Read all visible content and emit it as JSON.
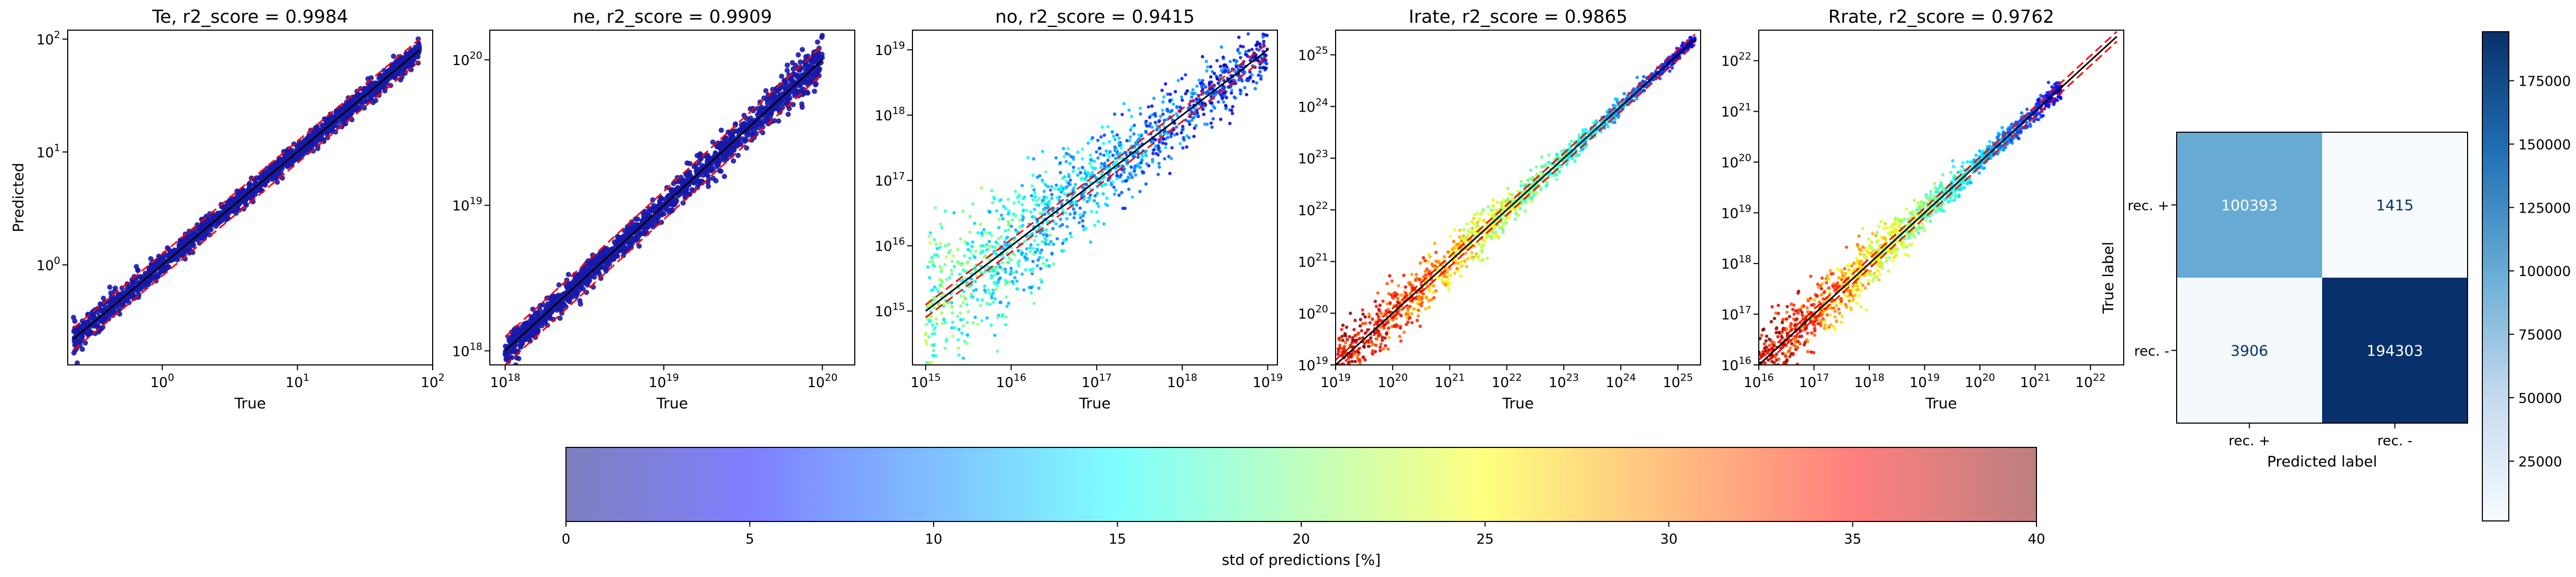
{
  "chart_data": [
    {
      "type": "scatter",
      "title": "Te, r2_score = 0.9984",
      "xlabel": "True",
      "ylabel": "Predicted",
      "xscale": "log",
      "yscale": "log",
      "xlim": [
        0.2,
        100
      ],
      "ylim": [
        0.13,
        120
      ],
      "xticks": [
        {
          "value": 1,
          "label": "10^0"
        },
        {
          "value": 10,
          "label": "10^1"
        },
        {
          "value": 100,
          "label": "10^2"
        }
      ],
      "yticks": [
        {
          "value": 1,
          "label": "10^0"
        },
        {
          "value": 10,
          "label": "10^1"
        },
        {
          "value": 100,
          "label": "10^2"
        }
      ],
      "point_color": "#1818a8",
      "identity_line": {
        "color": "#000000",
        "range": [
          0.22,
          80
        ]
      },
      "bounds": {
        "color": "#ff0000",
        "style": "dashed",
        "factors": [
          1.25,
          0.8
        ]
      },
      "series_shape": [
        {
          "x": 0.22,
          "y": 0.22,
          "spread": 0.07
        },
        {
          "x": 1,
          "y": 1,
          "spread": 0.05
        },
        {
          "x": 10,
          "y": 10,
          "spread": 0.04
        },
        {
          "x": 80,
          "y": 80,
          "spread": 0.05
        }
      ]
    },
    {
      "type": "scatter",
      "title": "ne, r2_score = 0.9909",
      "xlabel": "True",
      "ylabel": "",
      "xscale": "log",
      "yscale": "log",
      "xlim": [
        8e+17,
        1.6e+20
      ],
      "ylim": [
        8e+17,
        1.6e+20
      ],
      "xticks": [
        {
          "value": 1e+18,
          "label": "10^18"
        },
        {
          "value": 1e+19,
          "label": "10^19"
        },
        {
          "value": 1e+20,
          "label": "10^20"
        }
      ],
      "yticks": [
        {
          "value": 1e+18,
          "label": "10^18"
        },
        {
          "value": 1e+19,
          "label": "10^19"
        },
        {
          "value": 1e+20,
          "label": "10^20"
        }
      ],
      "point_color": "#1818a8",
      "identity_line": {
        "color": "#000000",
        "range": [
          1e+18,
          1e+20
        ]
      },
      "bounds": {
        "color": "#ff0000",
        "style": "dashed",
        "factors": [
          1.25,
          0.8
        ]
      },
      "series_shape": [
        {
          "x": 1e+18,
          "y": 1.05e+18,
          "spread": 0.05
        },
        {
          "x": 1e+19,
          "y": 1e+19,
          "spread": 0.04
        },
        {
          "x": 1e+20,
          "y": 9.5e+19,
          "spread": 0.08
        }
      ]
    },
    {
      "type": "scatter",
      "title": "no, r2_score = 0.9415",
      "xlabel": "True",
      "ylabel": "",
      "xscale": "log",
      "yscale": "log",
      "xlim": [
        700000000000000.0,
        1.3e+19
      ],
      "ylim": [
        150000000000000.0,
        2e+19
      ],
      "xticks": [
        {
          "value": 1000000000000000.0,
          "label": "10^15"
        },
        {
          "value": 1e+16,
          "label": "10^16"
        },
        {
          "value": 1e+17,
          "label": "10^17"
        },
        {
          "value": 1e+18,
          "label": "10^18"
        },
        {
          "value": 1e+19,
          "label": "10^19"
        }
      ],
      "yticks": [
        {
          "value": 1000000000000000.0,
          "label": "10^15"
        },
        {
          "value": 1e+16,
          "label": "10^16"
        },
        {
          "value": 1e+17,
          "label": "10^17"
        },
        {
          "value": 1e+18,
          "label": "10^18"
        },
        {
          "value": 1e+19,
          "label": "10^19"
        }
      ],
      "point_color": "#1030ff",
      "identity_line": {
        "color": "#000000",
        "range": [
          1000000000000000.0,
          1e+19
        ]
      },
      "bounds": {
        "color": "#ff0000",
        "style": "dashed",
        "factors": [
          1.25,
          0.8
        ]
      },
      "series_shape": [
        {
          "x": 1000000000000000.0,
          "y": 1000000000000000.0,
          "spread": 0.6
        },
        {
          "x": 1e+16,
          "y": 1e+16,
          "spread": 0.5
        },
        {
          "x": 1e+17,
          "y": 1e+17,
          "spread": 0.3
        },
        {
          "x": 1e+19,
          "y": 1e+19,
          "spread": 0.2
        }
      ]
    },
    {
      "type": "scatter",
      "title": "Irate, r2_score = 0.9865",
      "xlabel": "True",
      "ylabel": "",
      "xscale": "log",
      "yscale": "log",
      "xlim": [
        1e+19,
        2.5e+25
      ],
      "ylim": [
        1e+19,
        3e+25
      ],
      "xticks": [
        {
          "value": 1e+19,
          "label": "10^19"
        },
        {
          "value": 1e+20,
          "label": "10^20"
        },
        {
          "value": 1e+21,
          "label": "10^21"
        },
        {
          "value": 1e+22,
          "label": "10^22"
        },
        {
          "value": 1e+23,
          "label": "10^23"
        },
        {
          "value": 1e+24,
          "label": "10^24"
        },
        {
          "value": 1e+25,
          "label": "10^25"
        }
      ],
      "yticks": [
        {
          "value": 1e+19,
          "label": "10^19"
        },
        {
          "value": 1e+20,
          "label": "10^20"
        },
        {
          "value": 1e+21,
          "label": "10^21"
        },
        {
          "value": 1e+22,
          "label": "10^22"
        },
        {
          "value": 1e+23,
          "label": "10^23"
        },
        {
          "value": 1e+24,
          "label": "10^24"
        },
        {
          "value": 1e+25,
          "label": "10^25"
        }
      ],
      "point_color": "#a00000",
      "identity_line": {
        "color": "#000000",
        "range": [
          1e+19,
          2e+25
        ]
      },
      "bounds": {
        "color": "#ff0000",
        "style": "dashed",
        "factors": [
          1.25,
          0.8
        ]
      },
      "series_shape": [
        {
          "x": 1e+19,
          "y": 1e+19,
          "spread": 0.3
        },
        {
          "x": 1e+21,
          "y": 1e+21,
          "spread": 0.25
        },
        {
          "x": 1e+23,
          "y": 1e+23,
          "spread": 0.1
        },
        {
          "x": 2e+25,
          "y": 2e+25,
          "spread": 0.05
        }
      ]
    },
    {
      "type": "scatter",
      "title": "Rrate, r2_score = 0.9762",
      "xlabel": "True",
      "ylabel": "",
      "xscale": "log",
      "yscale": "log",
      "xlim": [
        1e+16,
        4e+22
      ],
      "ylim": [
        1e+16,
        4e+22
      ],
      "xticks": [
        {
          "value": 1e+16,
          "label": "10^16"
        },
        {
          "value": 1e+17,
          "label": "10^17"
        },
        {
          "value": 1e+18,
          "label": "10^18"
        },
        {
          "value": 1e+19,
          "label": "10^19"
        },
        {
          "value": 1e+20,
          "label": "10^20"
        },
        {
          "value": 1e+21,
          "label": "10^21"
        },
        {
          "value": 1e+22,
          "label": "10^22"
        }
      ],
      "yticks": [
        {
          "value": 1e+16,
          "label": "10^16"
        },
        {
          "value": 1e+17,
          "label": "10^17"
        },
        {
          "value": 1e+18,
          "label": "10^18"
        },
        {
          "value": 1e+19,
          "label": "10^19"
        },
        {
          "value": 1e+20,
          "label": "10^20"
        },
        {
          "value": 1e+21,
          "label": "10^21"
        },
        {
          "value": 1e+22,
          "label": "10^22"
        }
      ],
      "point_color": "#a00000",
      "identity_line": {
        "color": "#000000",
        "range": [
          1e+16,
          3e+22
        ]
      },
      "bounds": {
        "color": "#ff0000",
        "style": "dashed",
        "factors": [
          1.25,
          0.8
        ]
      },
      "series_shape": [
        {
          "x": 1e+16,
          "y": 1e+16,
          "spread": 0.35
        },
        {
          "x": 1e+18,
          "y": 1e+18,
          "spread": 0.25
        },
        {
          "x": 1e+20,
          "y": 1e+20,
          "spread": 0.1
        },
        {
          "x": 3e+21,
          "y": 3e+21,
          "spread": 0.1
        }
      ]
    },
    {
      "type": "heatmap",
      "title": "",
      "xlabel": "Predicted label",
      "ylabel": "True label",
      "x_categories": [
        "rec. +",
        "rec. -"
      ],
      "y_categories": [
        "rec. +",
        "rec. -"
      ],
      "values": [
        [
          100393,
          1415
        ],
        [
          3906,
          194303
        ]
      ],
      "colormap": "Blues",
      "colorbar": {
        "min": 1415,
        "max": 194303,
        "ticks": [
          25000,
          50000,
          75000,
          100000,
          125000,
          150000,
          175000
        ]
      }
    }
  ],
  "colorbar": {
    "label": "std of predictions [%]",
    "min": 0,
    "max": 40,
    "ticks": [
      0,
      5,
      10,
      15,
      20,
      25,
      30,
      35,
      40
    ],
    "colormap": "jet",
    "alpha": 0.5
  }
}
